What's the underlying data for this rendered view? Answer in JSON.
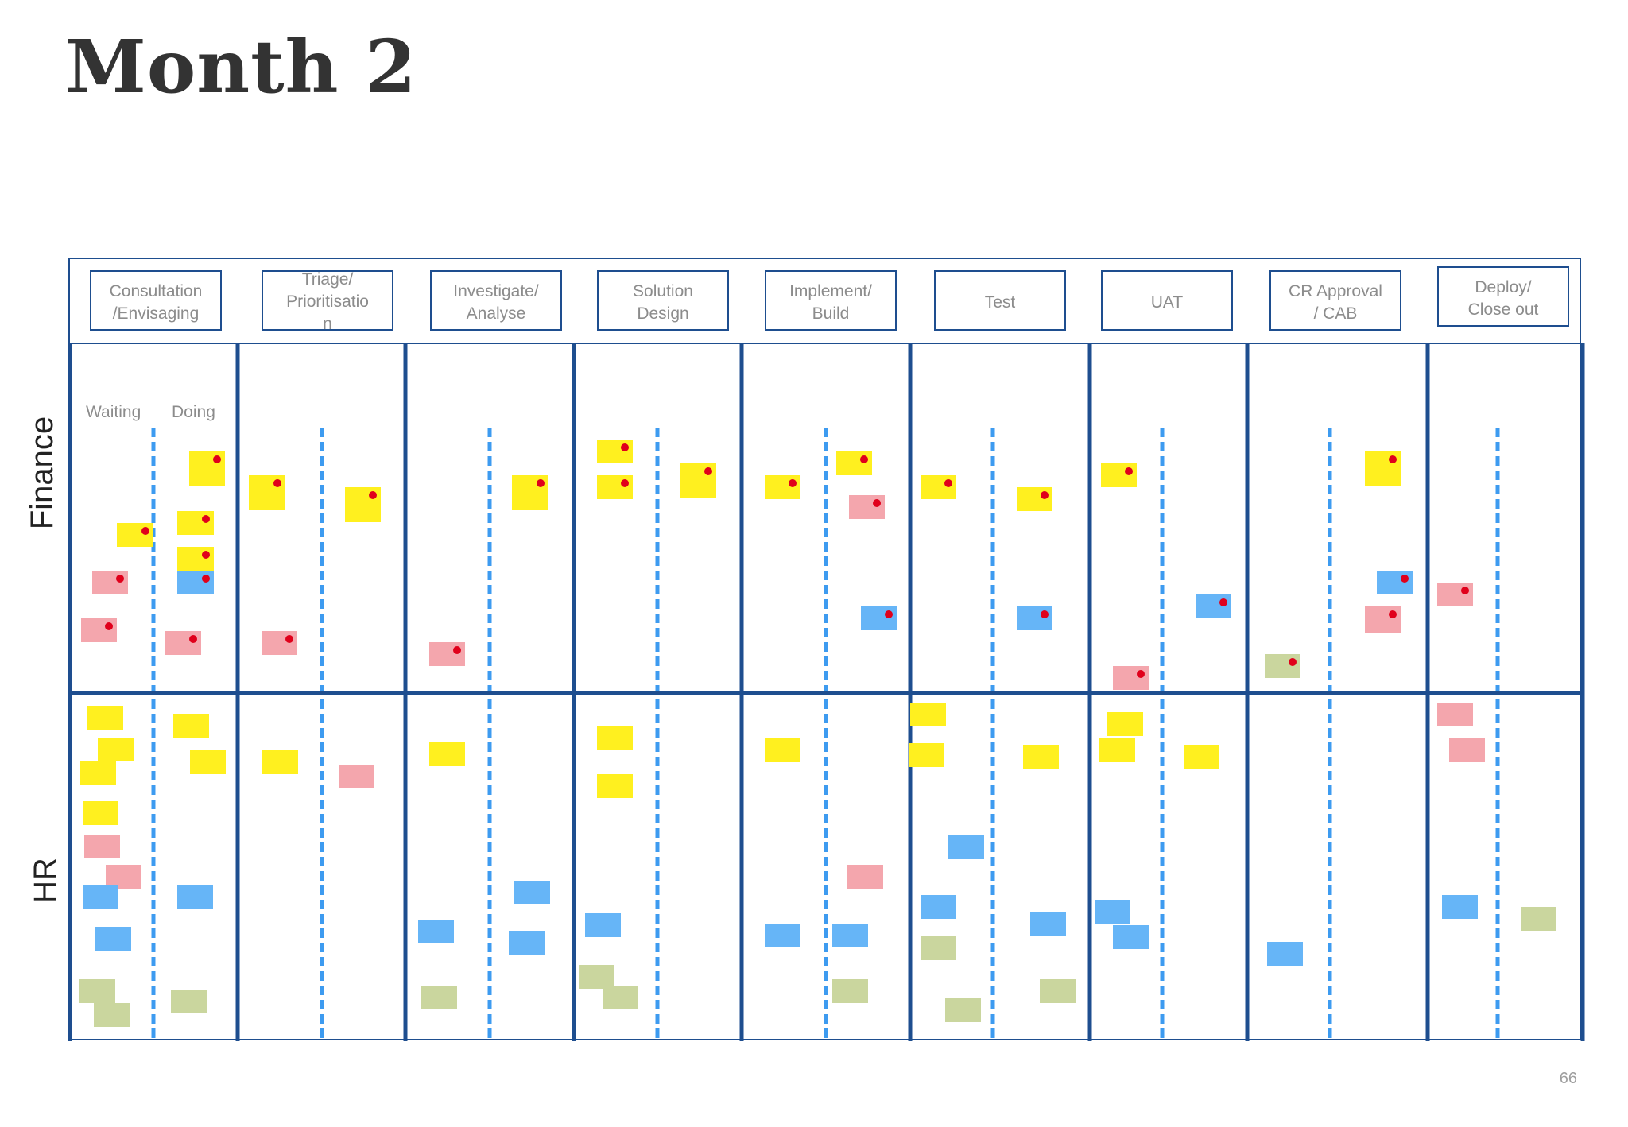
{
  "title": "Month 2",
  "page_number": "66",
  "stages": [
    {
      "line1": "Consultation",
      "line2": "/Envisaging",
      "line3": ""
    },
    {
      "line1": "Triage/",
      "line2": "Prioritisatio",
      "line3": "n"
    },
    {
      "line1": "Investigate/",
      "line2": "Analyse",
      "line3": ""
    },
    {
      "line1": "Solution",
      "line2": "Design",
      "line3": ""
    },
    {
      "line1": "Implement/",
      "line2": "Build",
      "line3": ""
    },
    {
      "line1": "Test",
      "line2": "",
      "line3": ""
    },
    {
      "line1": "UAT",
      "line2": "",
      "line3": ""
    },
    {
      "line1": "CR Approval",
      "line2": "/ CAB",
      "line3": ""
    },
    {
      "line1": "Deploy/",
      "line2": "Close out",
      "line3": ""
    }
  ],
  "subcolumns": {
    "waiting": "Waiting",
    "doing": "Doing"
  },
  "swimlanes": {
    "finance": "Finance",
    "hr": "HR"
  },
  "colors": {
    "yellow": "#fff01f",
    "pink": "#f4a6ad",
    "blue": "#66b5f7",
    "green": "#cad69e",
    "dot": "#e0001b",
    "frame": "#1e4e8f",
    "dash": "#3d9bf0",
    "label_text": "#8c8c8c"
  }
}
